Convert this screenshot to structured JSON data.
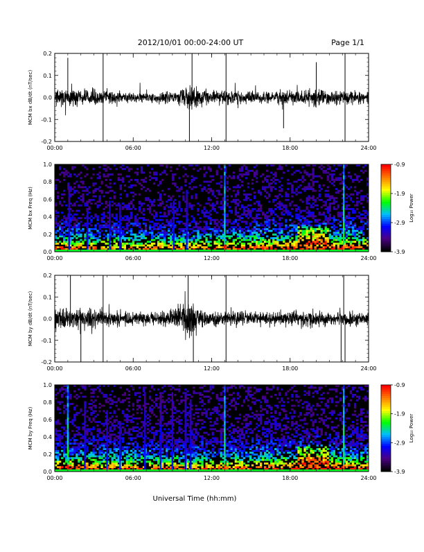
{
  "header": {
    "title": "2012/10/01   00:00-24:00 UT",
    "page": "Page 1/1"
  },
  "x_axis_title": "Universal Time (hh:mm)",
  "colorbar": {
    "label": "Log₁₀ Power",
    "ticks": [
      "-0.9",
      "-1.9",
      "-2.9",
      "-3.9"
    ],
    "range": [
      -3.9,
      -0.9
    ],
    "colors": [
      "#000000",
      "#4b0082",
      "#0000ff",
      "#00bfff",
      "#00ff00",
      "#ffff00",
      "#ff7f00",
      "#ff0000"
    ]
  },
  "chart_data": [
    {
      "type": "line",
      "ylabel": "MCM bx dB/dt (nT/sec)",
      "xlim": [
        0,
        24
      ],
      "ylim": [
        -0.2,
        0.2
      ],
      "x_ticks": [
        "00:00",
        "06:00",
        "12:00",
        "18:00",
        "24:00"
      ],
      "y_ticks": [
        "-0.2",
        "-0.1",
        "0.0",
        "0.1",
        "0.2"
      ],
      "noise_amplitude": [
        [
          0,
          0.04
        ],
        [
          3,
          0.04
        ],
        [
          6,
          0.025
        ],
        [
          9,
          0.03
        ],
        [
          10.5,
          0.07
        ],
        [
          12,
          0.035
        ],
        [
          16,
          0.03
        ],
        [
          20,
          0.04
        ],
        [
          24,
          0.03
        ]
      ],
      "spikes": [
        [
          1.0,
          0.18
        ],
        [
          3.7,
          0.21
        ],
        [
          3.7,
          -0.21
        ],
        [
          10.3,
          -0.2
        ],
        [
          10.5,
          0.2
        ],
        [
          13.1,
          0.21
        ],
        [
          13.1,
          -0.21
        ],
        [
          22.2,
          0.21
        ],
        [
          22.2,
          -0.21
        ],
        [
          17.5,
          -0.14
        ],
        [
          20.0,
          0.16
        ]
      ]
    },
    {
      "type": "heatmap",
      "ylabel": "MCM bx Freq (Hz)",
      "xlim": [
        0,
        24
      ],
      "ylim": [
        0,
        1.0
      ],
      "x_ticks": [
        "00:00",
        "06:00",
        "12:00",
        "18:00",
        "24:00"
      ],
      "y_ticks": [
        "0.0",
        "0.2",
        "0.4",
        "0.6",
        "0.8",
        "1.0"
      ],
      "vertical_events": [
        [
          1.1,
          0.7
        ],
        [
          2.5,
          0.5
        ],
        [
          4.2,
          0.6
        ],
        [
          5.0,
          0.55
        ],
        [
          9.1,
          0.6
        ],
        [
          10.1,
          0.7
        ],
        [
          13.0,
          1.0
        ],
        [
          22.1,
          1.0
        ]
      ],
      "activity": [
        [
          0,
          0.45
        ],
        [
          6,
          0.25
        ],
        [
          12,
          0.3
        ],
        [
          16,
          0.5
        ],
        [
          20,
          0.7
        ],
        [
          24,
          0.5
        ]
      ]
    },
    {
      "type": "line",
      "ylabel": "MCM by dB/dt (nT/sec)",
      "xlim": [
        0,
        24
      ],
      "ylim": [
        -0.2,
        0.2
      ],
      "x_ticks": [
        "00:00",
        "06:00",
        "12:00",
        "18:00",
        "24:00"
      ],
      "y_ticks": [
        "-0.2",
        "-0.1",
        "0.0",
        "0.1",
        "0.2"
      ],
      "noise_amplitude": [
        [
          0,
          0.05
        ],
        [
          3,
          0.05
        ],
        [
          6,
          0.03
        ],
        [
          9,
          0.04
        ],
        [
          10.3,
          0.11
        ],
        [
          11,
          0.05
        ],
        [
          12,
          0.04
        ],
        [
          16,
          0.035
        ],
        [
          20,
          0.04
        ],
        [
          24,
          0.035
        ]
      ],
      "spikes": [
        [
          1.2,
          0.21
        ],
        [
          2.0,
          -0.2
        ],
        [
          3.7,
          0.21
        ],
        [
          3.7,
          -0.21
        ],
        [
          10.2,
          0.2
        ],
        [
          10.6,
          -0.2
        ],
        [
          13.1,
          0.21
        ],
        [
          13.1,
          -0.21
        ],
        [
          22.1,
          0.21
        ],
        [
          22.2,
          -0.21
        ],
        [
          21.9,
          -0.2
        ]
      ]
    },
    {
      "type": "heatmap",
      "ylabel": "MCM by Freq (Hz)",
      "xlim": [
        0,
        24
      ],
      "ylim": [
        0,
        1.0
      ],
      "x_ticks": [
        "00:00",
        "06:00",
        "12:00",
        "18:00",
        "24:00"
      ],
      "y_ticks": [
        "0.0",
        "0.2",
        "0.4",
        "0.6",
        "0.8",
        "1.0"
      ],
      "vertical_events": [
        [
          1.0,
          1.0
        ],
        [
          2.3,
          0.8
        ],
        [
          4.0,
          0.7
        ],
        [
          5.0,
          0.6
        ],
        [
          6.9,
          0.9
        ],
        [
          8.1,
          0.9
        ],
        [
          9.0,
          0.9
        ],
        [
          10.0,
          0.9
        ],
        [
          10.4,
          0.85
        ],
        [
          13.0,
          1.0
        ],
        [
          22.1,
          1.0
        ]
      ],
      "activity": [
        [
          0,
          0.55
        ],
        [
          6,
          0.35
        ],
        [
          12,
          0.35
        ],
        [
          16,
          0.5
        ],
        [
          20,
          0.75
        ],
        [
          24,
          0.5
        ]
      ]
    }
  ]
}
